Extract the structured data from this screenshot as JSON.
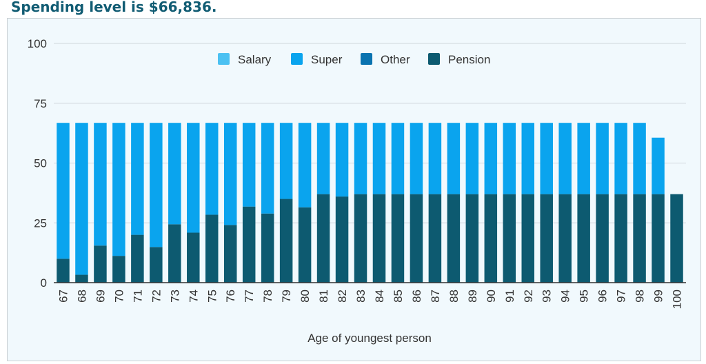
{
  "heading": "Spending level is $66,836.",
  "chart_data": {
    "type": "bar",
    "stacked": true,
    "xlabel": "Age of youngest person",
    "ylabel": "",
    "ylim": [
      0,
      100
    ],
    "yticks": [
      0,
      25,
      50,
      75,
      100
    ],
    "grid": true,
    "legend_position": "top",
    "categories": [
      "67",
      "68",
      "69",
      "70",
      "71",
      "72",
      "73",
      "74",
      "75",
      "76",
      "77",
      "78",
      "79",
      "80",
      "81",
      "82",
      "83",
      "84",
      "85",
      "86",
      "87",
      "88",
      "89",
      "90",
      "91",
      "92",
      "93",
      "94",
      "95",
      "96",
      "97",
      "98",
      "99",
      "100"
    ],
    "series": [
      {
        "name": "Salary",
        "color": "#4cc1f2",
        "values": [
          0,
          0,
          0,
          0,
          0,
          0,
          0,
          0,
          0,
          0,
          0,
          0,
          0,
          0,
          0,
          0,
          0,
          0,
          0,
          0,
          0,
          0,
          0,
          0,
          0,
          0,
          0,
          0,
          0,
          0,
          0,
          0,
          0,
          0
        ]
      },
      {
        "name": "Super",
        "color": "#0aa4ee",
        "values": [
          56.8,
          63.5,
          51.3,
          55.6,
          46.8,
          51.9,
          42.4,
          45.9,
          38.4,
          42.7,
          35.0,
          37.9,
          31.8,
          35.3,
          29.8,
          30.8,
          29.8,
          29.8,
          29.8,
          29.8,
          29.8,
          29.8,
          29.8,
          29.8,
          29.8,
          29.8,
          29.8,
          29.8,
          29.8,
          29.8,
          29.8,
          29.8,
          23.6,
          0
        ]
      },
      {
        "name": "Other",
        "color": "#0a73b0",
        "values": [
          0,
          0,
          0,
          0,
          0,
          0,
          0,
          0,
          0,
          0,
          0,
          0,
          0,
          0,
          0,
          0,
          0,
          0,
          0,
          0,
          0,
          0,
          0,
          0,
          0,
          0,
          0,
          0,
          0,
          0,
          0,
          0,
          0,
          0
        ]
      },
      {
        "name": "Pension",
        "color": "#0d5a70",
        "values": [
          10.0,
          3.3,
          15.5,
          11.2,
          20.0,
          14.9,
          24.4,
          20.9,
          28.4,
          24.1,
          31.8,
          28.9,
          35.0,
          31.5,
          37.0,
          36.0,
          37.0,
          37.0,
          37.0,
          37.0,
          37.0,
          37.0,
          37.0,
          37.0,
          37.0,
          37.0,
          37.0,
          37.0,
          37.0,
          37.0,
          37.0,
          37.0,
          37.0,
          37.0
        ]
      }
    ]
  }
}
